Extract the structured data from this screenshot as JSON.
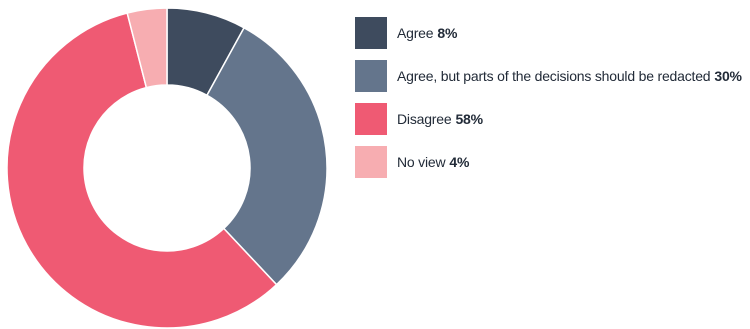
{
  "chart_data": {
    "type": "pie",
    "donut": true,
    "title": "",
    "slices": [
      {
        "label": "Agree",
        "value": 8,
        "value_label": "8%",
        "color": "#3e4b5e"
      },
      {
        "label": "Agree, but parts of the decisions should be redacted",
        "value": 30,
        "value_label": "30%",
        "color": "#64758c"
      },
      {
        "label": "Disagree",
        "value": 58,
        "value_label": "58%",
        "color": "#ef5a73"
      },
      {
        "label": "No view",
        "value": 4,
        "value_label": "4%",
        "color": "#f7adb1"
      }
    ],
    "legend_placement": "right"
  }
}
